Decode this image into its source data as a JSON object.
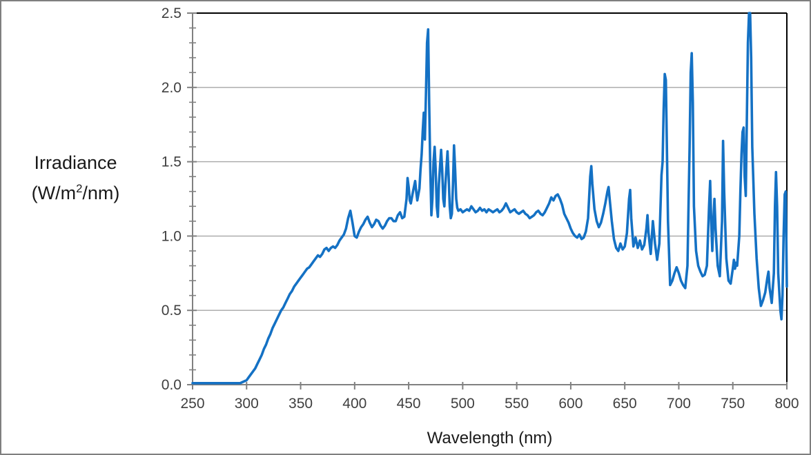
{
  "figure": {
    "background": "#FFFFFF",
    "outer_border_color": "#7F7F7F",
    "plot_border_color": "#000000",
    "axis_color": "#808080",
    "gridline_color": "#A6A6A6",
    "tick_label_color": "#3F3F3F"
  },
  "y_axis": {
    "title_line1": "Irradiance",
    "title_line2_pre": "(W/m",
    "title_line2_sup": "2",
    "title_line2_post": "/nm)",
    "tick_labels": [
      "0.0",
      "0.5",
      "1.0",
      "1.5",
      "2.0",
      "2.5"
    ],
    "range": [
      0,
      2.5
    ],
    "major_step": 0.5,
    "minor_step": 0.1
  },
  "x_axis": {
    "title": "Wavelength (nm)",
    "tick_labels": [
      "250",
      "300",
      "350",
      "400",
      "450",
      "500",
      "550",
      "600",
      "650",
      "700",
      "750",
      "800"
    ],
    "range": [
      250,
      800
    ],
    "major_step": 50
  },
  "chart_data": {
    "type": "line",
    "title": "",
    "xlabel": "Wavelength (nm)",
    "ylabel": "Irradiance (W/m2/nm)",
    "xlim": [
      250,
      800
    ],
    "ylim": [
      0,
      2.5
    ],
    "grid": "horizontal major gridlines only",
    "legend": "none",
    "line_color": "#1471C4",
    "line_width": 3.6,
    "notable_peaks": [
      {
        "nm": 468,
        "value": 2.39
      },
      {
        "nm": 687,
        "value": 2.09
      },
      {
        "nm": 712,
        "value": 2.23
      },
      {
        "nm": 765,
        "value": 2.5
      },
      {
        "nm": 790,
        "value": 1.43
      }
    ],
    "series": [
      {
        "name": "irradiance",
        "points": [
          [
            250,
            0.01
          ],
          [
            255,
            0.01
          ],
          [
            260,
            0.01
          ],
          [
            265,
            0.01
          ],
          [
            270,
            0.01
          ],
          [
            275,
            0.01
          ],
          [
            280,
            0.01
          ],
          [
            285,
            0.01
          ],
          [
            290,
            0.01
          ],
          [
            294,
            0.01
          ],
          [
            297,
            0.02
          ],
          [
            300,
            0.03
          ],
          [
            302,
            0.05
          ],
          [
            304,
            0.07
          ],
          [
            306,
            0.09
          ],
          [
            308,
            0.11
          ],
          [
            310,
            0.14
          ],
          [
            312,
            0.17
          ],
          [
            314,
            0.2
          ],
          [
            316,
            0.24
          ],
          [
            318,
            0.27
          ],
          [
            320,
            0.31
          ],
          [
            322,
            0.34
          ],
          [
            324,
            0.38
          ],
          [
            326,
            0.41
          ],
          [
            328,
            0.44
          ],
          [
            330,
            0.47
          ],
          [
            332,
            0.5
          ],
          [
            334,
            0.52
          ],
          [
            336,
            0.55
          ],
          [
            338,
            0.58
          ],
          [
            340,
            0.61
          ],
          [
            342,
            0.63
          ],
          [
            344,
            0.66
          ],
          [
            346,
            0.68
          ],
          [
            348,
            0.7
          ],
          [
            350,
            0.72
          ],
          [
            352,
            0.74
          ],
          [
            354,
            0.76
          ],
          [
            356,
            0.78
          ],
          [
            358,
            0.79
          ],
          [
            360,
            0.81
          ],
          [
            362,
            0.83
          ],
          [
            364,
            0.85
          ],
          [
            366,
            0.87
          ],
          [
            368,
            0.86
          ],
          [
            370,
            0.88
          ],
          [
            372,
            0.91
          ],
          [
            374,
            0.92
          ],
          [
            376,
            0.9
          ],
          [
            378,
            0.92
          ],
          [
            380,
            0.93
          ],
          [
            382,
            0.92
          ],
          [
            384,
            0.94
          ],
          [
            386,
            0.97
          ],
          [
            388,
            0.99
          ],
          [
            390,
            1.01
          ],
          [
            392,
            1.05
          ],
          [
            394,
            1.12
          ],
          [
            396,
            1.17
          ],
          [
            398,
            1.09
          ],
          [
            400,
            1.0
          ],
          [
            402,
            0.99
          ],
          [
            404,
            1.03
          ],
          [
            406,
            1.06
          ],
          [
            408,
            1.08
          ],
          [
            410,
            1.11
          ],
          [
            412,
            1.13
          ],
          [
            414,
            1.09
          ],
          [
            416,
            1.06
          ],
          [
            418,
            1.08
          ],
          [
            420,
            1.11
          ],
          [
            422,
            1.1
          ],
          [
            424,
            1.07
          ],
          [
            426,
            1.05
          ],
          [
            428,
            1.07
          ],
          [
            430,
            1.1
          ],
          [
            432,
            1.12
          ],
          [
            434,
            1.12
          ],
          [
            436,
            1.1
          ],
          [
            438,
            1.1
          ],
          [
            440,
            1.14
          ],
          [
            442,
            1.16
          ],
          [
            444,
            1.12
          ],
          [
            446,
            1.13
          ],
          [
            448,
            1.25
          ],
          [
            449,
            1.39
          ],
          [
            450,
            1.33
          ],
          [
            451,
            1.24
          ],
          [
            452,
            1.22
          ],
          [
            454,
            1.3
          ],
          [
            456,
            1.37
          ],
          [
            457,
            1.3
          ],
          [
            458,
            1.24
          ],
          [
            460,
            1.32
          ],
          [
            461,
            1.45
          ],
          [
            462,
            1.55
          ],
          [
            463,
            1.7
          ],
          [
            464,
            1.83
          ],
          [
            465,
            1.65
          ],
          [
            466,
            1.95
          ],
          [
            467,
            2.3
          ],
          [
            468,
            2.39
          ],
          [
            469,
            1.9
          ],
          [
            470,
            1.45
          ],
          [
            471,
            1.14
          ],
          [
            472,
            1.25
          ],
          [
            473,
            1.5
          ],
          [
            474,
            1.6
          ],
          [
            475,
            1.45
          ],
          [
            476,
            1.2
          ],
          [
            477,
            1.13
          ],
          [
            478,
            1.35
          ],
          [
            480,
            1.58
          ],
          [
            481,
            1.45
          ],
          [
            482,
            1.25
          ],
          [
            483,
            1.2
          ],
          [
            484,
            1.35
          ],
          [
            486,
            1.57
          ],
          [
            487,
            1.4
          ],
          [
            488,
            1.2
          ],
          [
            489,
            1.12
          ],
          [
            490,
            1.15
          ],
          [
            491,
            1.35
          ],
          [
            492,
            1.61
          ],
          [
            493,
            1.45
          ],
          [
            494,
            1.25
          ],
          [
            495,
            1.19
          ],
          [
            496,
            1.17
          ],
          [
            498,
            1.18
          ],
          [
            500,
            1.16
          ],
          [
            502,
            1.17
          ],
          [
            504,
            1.18
          ],
          [
            506,
            1.17
          ],
          [
            508,
            1.2
          ],
          [
            510,
            1.18
          ],
          [
            512,
            1.16
          ],
          [
            514,
            1.17
          ],
          [
            516,
            1.19
          ],
          [
            518,
            1.17
          ],
          [
            520,
            1.18
          ],
          [
            522,
            1.16
          ],
          [
            524,
            1.18
          ],
          [
            526,
            1.17
          ],
          [
            528,
            1.16
          ],
          [
            530,
            1.17
          ],
          [
            532,
            1.18
          ],
          [
            534,
            1.16
          ],
          [
            536,
            1.17
          ],
          [
            538,
            1.19
          ],
          [
            540,
            1.22
          ],
          [
            542,
            1.19
          ],
          [
            544,
            1.16
          ],
          [
            546,
            1.17
          ],
          [
            548,
            1.18
          ],
          [
            550,
            1.16
          ],
          [
            552,
            1.15
          ],
          [
            554,
            1.16
          ],
          [
            556,
            1.17
          ],
          [
            558,
            1.15
          ],
          [
            560,
            1.14
          ],
          [
            562,
            1.12
          ],
          [
            564,
            1.13
          ],
          [
            566,
            1.14
          ],
          [
            568,
            1.16
          ],
          [
            570,
            1.17
          ],
          [
            572,
            1.15
          ],
          [
            574,
            1.14
          ],
          [
            576,
            1.16
          ],
          [
            578,
            1.19
          ],
          [
            580,
            1.22
          ],
          [
            582,
            1.26
          ],
          [
            584,
            1.24
          ],
          [
            586,
            1.27
          ],
          [
            588,
            1.28
          ],
          [
            590,
            1.25
          ],
          [
            592,
            1.21
          ],
          [
            594,
            1.15
          ],
          [
            596,
            1.12
          ],
          [
            598,
            1.09
          ],
          [
            600,
            1.05
          ],
          [
            602,
            1.02
          ],
          [
            604,
            1.0
          ],
          [
            606,
            0.99
          ],
          [
            608,
            1.01
          ],
          [
            610,
            0.98
          ],
          [
            612,
            0.99
          ],
          [
            614,
            1.03
          ],
          [
            616,
            1.12
          ],
          [
            618,
            1.4
          ],
          [
            619,
            1.47
          ],
          [
            620,
            1.35
          ],
          [
            622,
            1.18
          ],
          [
            624,
            1.1
          ],
          [
            626,
            1.06
          ],
          [
            628,
            1.09
          ],
          [
            630,
            1.15
          ],
          [
            632,
            1.22
          ],
          [
            634,
            1.3
          ],
          [
            635,
            1.33
          ],
          [
            636,
            1.25
          ],
          [
            638,
            1.1
          ],
          [
            640,
            0.98
          ],
          [
            642,
            0.92
          ],
          [
            644,
            0.9
          ],
          [
            646,
            0.95
          ],
          [
            648,
            0.91
          ],
          [
            650,
            0.93
          ],
          [
            652,
            1.02
          ],
          [
            654,
            1.25
          ],
          [
            655,
            1.31
          ],
          [
            656,
            1.12
          ],
          [
            658,
            0.93
          ],
          [
            660,
            0.99
          ],
          [
            662,
            0.92
          ],
          [
            664,
            0.97
          ],
          [
            666,
            0.91
          ],
          [
            668,
            0.94
          ],
          [
            670,
            1.05
          ],
          [
            671,
            1.14
          ],
          [
            672,
            1.02
          ],
          [
            674,
            0.88
          ],
          [
            676,
            1.1
          ],
          [
            678,
            0.95
          ],
          [
            680,
            0.84
          ],
          [
            682,
            0.95
          ],
          [
            684,
            1.41
          ],
          [
            685,
            1.5
          ],
          [
            686,
            1.85
          ],
          [
            687,
            2.09
          ],
          [
            688,
            2.05
          ],
          [
            689,
            1.6
          ],
          [
            690,
            1.1
          ],
          [
            692,
            0.67
          ],
          [
            694,
            0.7
          ],
          [
            696,
            0.75
          ],
          [
            698,
            0.79
          ],
          [
            700,
            0.75
          ],
          [
            702,
            0.7
          ],
          [
            704,
            0.67
          ],
          [
            706,
            0.65
          ],
          [
            708,
            0.8
          ],
          [
            710,
            1.6
          ],
          [
            711,
            2.1
          ],
          [
            712,
            2.23
          ],
          [
            713,
            1.9
          ],
          [
            714,
            1.2
          ],
          [
            716,
            0.9
          ],
          [
            718,
            0.8
          ],
          [
            720,
            0.76
          ],
          [
            722,
            0.73
          ],
          [
            724,
            0.74
          ],
          [
            726,
            0.8
          ],
          [
            728,
            1.2
          ],
          [
            729,
            1.37
          ],
          [
            730,
            1.1
          ],
          [
            731,
            0.9
          ],
          [
            732,
            1.1
          ],
          [
            733,
            1.25
          ],
          [
            734,
            1.05
          ],
          [
            736,
            0.8
          ],
          [
            738,
            0.73
          ],
          [
            740,
            1.1
          ],
          [
            741,
            1.64
          ],
          [
            742,
            1.3
          ],
          [
            744,
            0.85
          ],
          [
            746,
            0.7
          ],
          [
            748,
            0.68
          ],
          [
            750,
            0.78
          ],
          [
            751,
            0.84
          ],
          [
            752,
            0.78
          ],
          [
            753,
            0.82
          ],
          [
            754,
            0.8
          ],
          [
            756,
            1.0
          ],
          [
            757,
            1.3
          ],
          [
            758,
            1.55
          ],
          [
            759,
            1.7
          ],
          [
            760,
            1.73
          ],
          [
            761,
            1.4
          ],
          [
            762,
            1.27
          ],
          [
            763,
            1.8
          ],
          [
            764,
            2.3
          ],
          [
            765,
            2.5
          ],
          [
            766,
            2.5
          ],
          [
            767,
            2.2
          ],
          [
            768,
            1.6
          ],
          [
            770,
            1.15
          ],
          [
            772,
            0.85
          ],
          [
            774,
            0.65
          ],
          [
            776,
            0.53
          ],
          [
            778,
            0.57
          ],
          [
            780,
            0.62
          ],
          [
            782,
            0.72
          ],
          [
            783,
            0.76
          ],
          [
            784,
            0.65
          ],
          [
            786,
            0.55
          ],
          [
            788,
            0.75
          ],
          [
            789,
            1.2
          ],
          [
            790,
            1.43
          ],
          [
            791,
            1.2
          ],
          [
            792,
            0.75
          ],
          [
            794,
            0.5
          ],
          [
            795,
            0.44
          ],
          [
            796,
            0.6
          ],
          [
            797,
            1.0
          ],
          [
            798,
            1.28
          ],
          [
            799,
            1.3
          ],
          [
            800,
            0.66
          ]
        ]
      }
    ]
  }
}
